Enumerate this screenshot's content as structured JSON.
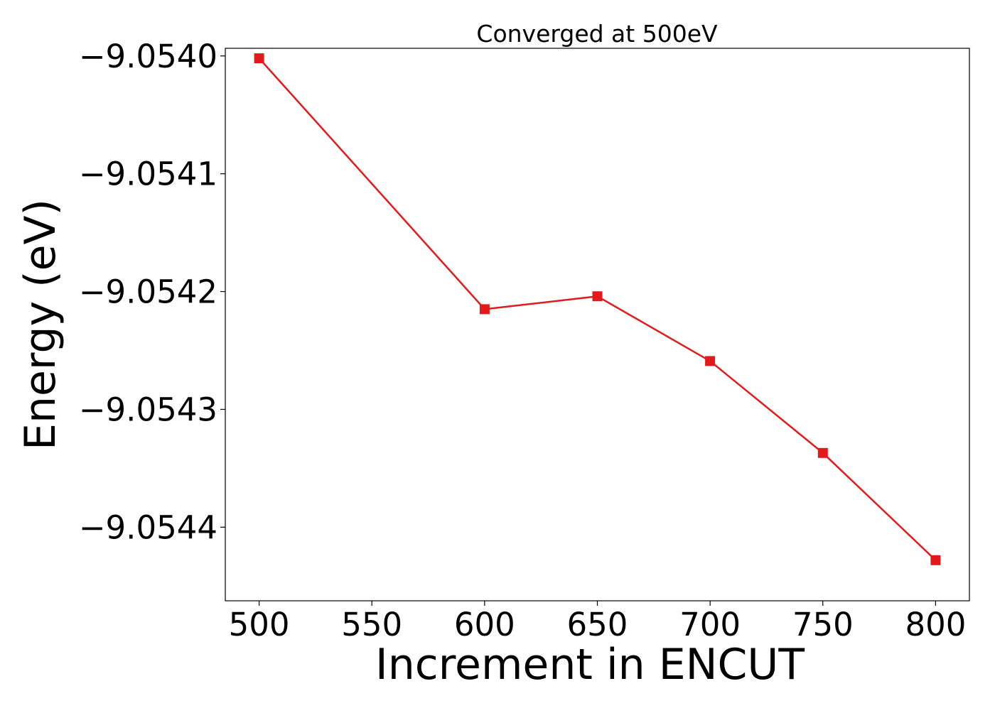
{
  "chart_data": {
    "type": "line",
    "title": "Converged at 500eV",
    "xlabel": "Increment in ENCUT",
    "ylabel": "Energy (eV)",
    "x": [
      500,
      600,
      650,
      700,
      750,
      800
    ],
    "series": [
      {
        "values": [
          -9.054002,
          -9.054215,
          -9.054204,
          -9.054259,
          -9.054337,
          -9.054428
        ],
        "color": "#e31a1c",
        "marker": "square"
      }
    ],
    "xlim": [
      485,
      815
    ],
    "ylim": [
      -9.0544625,
      -9.0539935
    ],
    "xticks": [
      500,
      550,
      600,
      650,
      700,
      750,
      800
    ],
    "xtick_labels": [
      "500",
      "550",
      "600",
      "650",
      "700",
      "750",
      "800"
    ],
    "yticks": [
      -9.054,
      -9.0541,
      -9.0542,
      -9.0543,
      -9.0544
    ],
    "ytick_labels": [
      "−9.0540",
      "−9.0541",
      "−9.0542",
      "−9.0543",
      "−9.0544"
    ],
    "grid": false,
    "legend": "none"
  }
}
